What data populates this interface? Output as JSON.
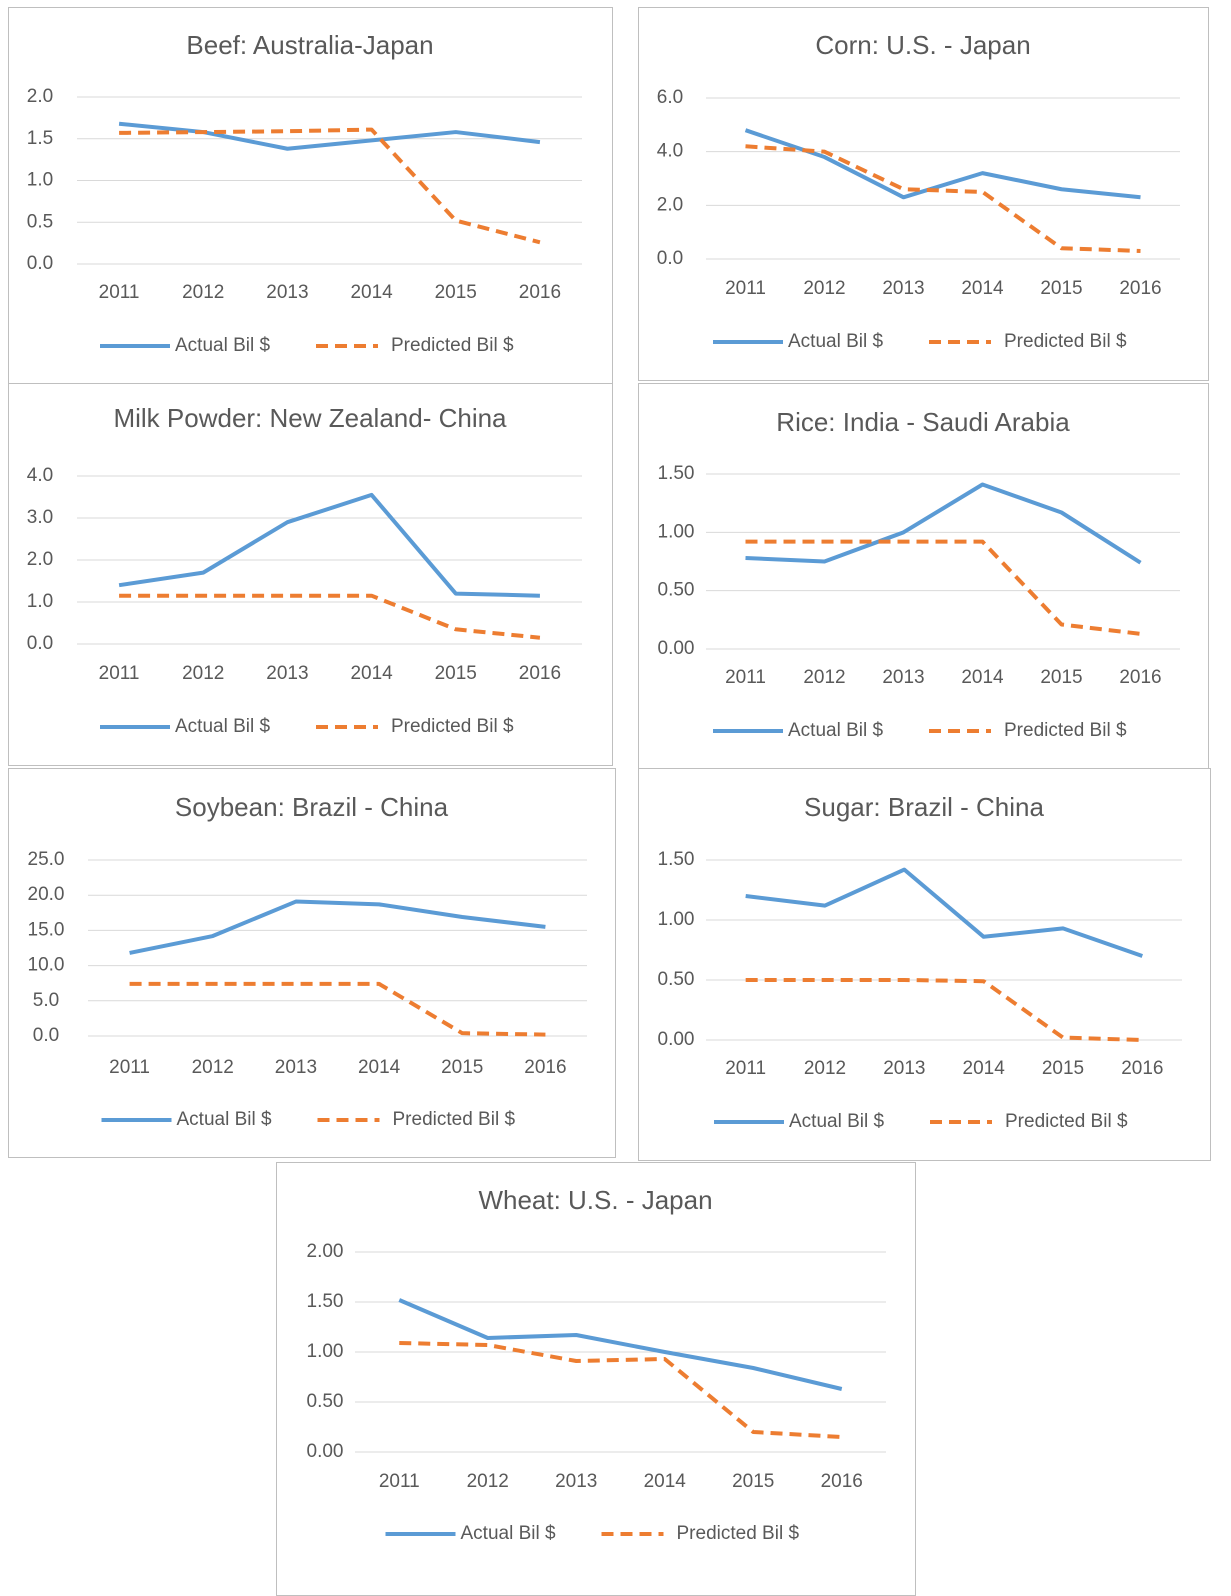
{
  "chart_data": [
    {
      "type": "line",
      "title": "Beef: Australia-Japan",
      "categories": [
        "2011",
        "2012",
        "2013",
        "2014",
        "2015",
        "2016"
      ],
      "series": [
        {
          "name": "Actual Bil $",
          "color": "#5b9bd5",
          "style": "solid",
          "values": [
            1.68,
            1.58,
            1.38,
            1.48,
            1.58,
            1.46
          ]
        },
        {
          "name": "Predicted Bil $",
          "color": "#ed7d31",
          "style": "dashed",
          "values": [
            1.57,
            1.58,
            1.59,
            1.61,
            0.52,
            0.26
          ]
        }
      ],
      "ylim": [
        0,
        2
      ],
      "yticks": [
        {
          "value": 0,
          "label": "0.0"
        },
        {
          "value": 0.5,
          "label": "0.5"
        },
        {
          "value": 1,
          "label": "1.0"
        },
        {
          "value": 1.5,
          "label": "1.5"
        },
        {
          "value": 2,
          "label": "2.0"
        }
      ],
      "grid": true,
      "legend": "bottom"
    },
    {
      "type": "line",
      "title": "Corn: U.S. - Japan",
      "categories": [
        "2011",
        "2012",
        "2013",
        "2014",
        "2015",
        "2016"
      ],
      "series": [
        {
          "name": "Actual Bil $",
          "color": "#5b9bd5",
          "style": "solid",
          "values": [
            4.8,
            3.8,
            2.3,
            3.2,
            2.6,
            2.3
          ]
        },
        {
          "name": "Predicted Bil $",
          "color": "#ed7d31",
          "style": "dashed",
          "values": [
            4.2,
            4.0,
            2.6,
            2.5,
            0.4,
            0.3
          ]
        }
      ],
      "ylim": [
        0,
        6
      ],
      "yticks": [
        {
          "value": 0,
          "label": "0.0"
        },
        {
          "value": 2,
          "label": "2.0"
        },
        {
          "value": 4,
          "label": "4.0"
        },
        {
          "value": 6,
          "label": "6.0"
        }
      ],
      "grid": true,
      "legend": "bottom"
    },
    {
      "type": "line",
      "title": "Milk Powder: New Zealand- China",
      "categories": [
        "2011",
        "2012",
        "2013",
        "2014",
        "2015",
        "2016"
      ],
      "series": [
        {
          "name": "Actual Bil $",
          "color": "#5b9bd5",
          "style": "solid",
          "values": [
            1.4,
            1.7,
            2.9,
            3.55,
            1.2,
            1.15
          ]
        },
        {
          "name": "Predicted Bil $",
          "color": "#ed7d31",
          "style": "dashed",
          "values": [
            1.15,
            1.15,
            1.15,
            1.15,
            0.35,
            0.15
          ]
        }
      ],
      "ylim": [
        0,
        4
      ],
      "yticks": [
        {
          "value": 0,
          "label": "0.0"
        },
        {
          "value": 1,
          "label": "1.0"
        },
        {
          "value": 2,
          "label": "2.0"
        },
        {
          "value": 3,
          "label": "3.0"
        },
        {
          "value": 4,
          "label": "4.0"
        }
      ],
      "grid": true,
      "legend": "bottom"
    },
    {
      "type": "line",
      "title": "Rice: India - Saudi Arabia",
      "categories": [
        "2011",
        "2012",
        "2013",
        "2014",
        "2015",
        "2016"
      ],
      "series": [
        {
          "name": "Actual Bil $",
          "color": "#5b9bd5",
          "style": "solid",
          "values": [
            0.78,
            0.75,
            1.0,
            1.41,
            1.17,
            0.74
          ]
        },
        {
          "name": "Predicted Bil $",
          "color": "#ed7d31",
          "style": "dashed",
          "values": [
            0.92,
            0.92,
            0.92,
            0.92,
            0.21,
            0.13
          ]
        }
      ],
      "ylim": [
        0,
        1.5
      ],
      "yticks": [
        {
          "value": 0,
          "label": "0.00"
        },
        {
          "value": 0.5,
          "label": "0.50"
        },
        {
          "value": 1,
          "label": "1.00"
        },
        {
          "value": 1.5,
          "label": "1.50"
        }
      ],
      "grid": true,
      "legend": "bottom"
    },
    {
      "type": "line",
      "title": "Soybean: Brazil - China",
      "categories": [
        "2011",
        "2012",
        "2013",
        "2014",
        "2015",
        "2016"
      ],
      "series": [
        {
          "name": "Actual Bil $",
          "color": "#5b9bd5",
          "style": "solid",
          "values": [
            11.8,
            14.2,
            19.1,
            18.7,
            16.9,
            15.5
          ]
        },
        {
          "name": "Predicted Bil $",
          "color": "#ed7d31",
          "style": "dashed",
          "values": [
            7.4,
            7.4,
            7.4,
            7.4,
            0.4,
            0.2
          ]
        }
      ],
      "ylim": [
        0,
        25
      ],
      "yticks": [
        {
          "value": 0,
          "label": "0.0"
        },
        {
          "value": 5,
          "label": "5.0"
        },
        {
          "value": 10,
          "label": "10.0"
        },
        {
          "value": 15,
          "label": "15.0"
        },
        {
          "value": 20,
          "label": "20.0"
        },
        {
          "value": 25,
          "label": "25.0"
        }
      ],
      "grid": true,
      "legend": "bottom"
    },
    {
      "type": "line",
      "title": "Sugar: Brazil - China",
      "categories": [
        "2011",
        "2012",
        "2013",
        "2014",
        "2015",
        "2016"
      ],
      "series": [
        {
          "name": "Actual Bil $",
          "color": "#5b9bd5",
          "style": "solid",
          "values": [
            1.2,
            1.12,
            1.42,
            0.86,
            0.93,
            0.7
          ]
        },
        {
          "name": "Predicted Bil $",
          "color": "#ed7d31",
          "style": "dashed",
          "values": [
            0.5,
            0.5,
            0.5,
            0.49,
            0.02,
            0.0
          ]
        }
      ],
      "ylim": [
        0,
        1.5
      ],
      "yticks": [
        {
          "value": 0,
          "label": "0.00"
        },
        {
          "value": 0.5,
          "label": "0.50"
        },
        {
          "value": 1,
          "label": "1.00"
        },
        {
          "value": 1.5,
          "label": "1.50"
        }
      ],
      "grid": true,
      "legend": "bottom"
    },
    {
      "type": "line",
      "title": "Wheat: U.S. - Japan",
      "categories": [
        "2011",
        "2012",
        "2013",
        "2014",
        "2015",
        "2016"
      ],
      "series": [
        {
          "name": "Actual Bil $",
          "color": "#5b9bd5",
          "style": "solid",
          "values": [
            1.52,
            1.14,
            1.17,
            1.0,
            0.84,
            0.63
          ]
        },
        {
          "name": "Predicted Bil $",
          "color": "#ed7d31",
          "style": "dashed",
          "values": [
            1.09,
            1.07,
            0.91,
            0.93,
            0.2,
            0.15
          ]
        }
      ],
      "ylim": [
        0,
        2
      ],
      "yticks": [
        {
          "value": 0,
          "label": "0.00"
        },
        {
          "value": 0.5,
          "label": "0.50"
        },
        {
          "value": 1,
          "label": "1.00"
        },
        {
          "value": 1.5,
          "label": "1.50"
        },
        {
          "value": 2,
          "label": "2.00"
        }
      ],
      "grid": true,
      "legend": "bottom"
    }
  ]
}
